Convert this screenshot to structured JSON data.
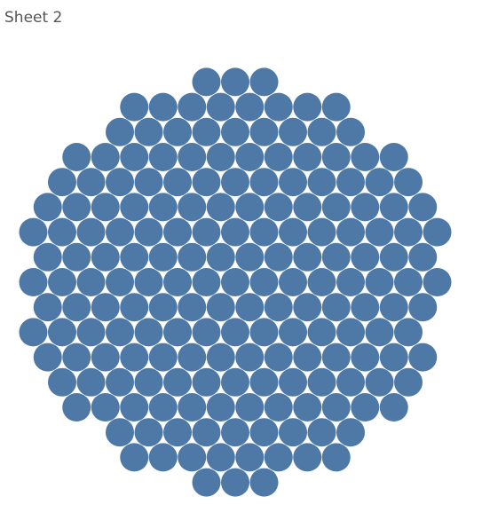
{
  "chart_data": {
    "type": "bubble",
    "title": "Sheet 2",
    "color": "#4e79a7",
    "values": [
      1,
      1,
      1,
      1,
      1,
      1,
      1,
      1,
      1,
      1,
      1,
      1,
      1,
      1,
      1,
      1,
      1,
      1,
      1,
      1,
      1,
      1,
      1,
      1,
      1,
      1,
      1,
      1,
      1,
      1,
      1,
      1,
      1,
      1,
      1,
      1,
      1,
      1,
      1,
      1,
      1,
      1,
      1,
      1,
      1,
      1,
      1,
      1,
      1,
      1,
      1,
      1,
      1,
      1,
      1,
      1,
      1,
      1,
      1,
      1,
      1,
      1,
      1,
      1,
      1,
      1,
      1,
      1,
      1,
      1,
      1,
      1,
      1,
      1,
      1,
      1,
      1,
      1,
      1,
      1,
      1,
      1,
      1,
      1,
      1,
      1,
      1,
      1,
      1,
      1,
      1,
      1,
      1,
      1,
      1,
      1,
      1,
      1,
      1,
      1,
      1,
      1,
      1,
      1,
      1,
      1,
      1,
      1,
      1,
      1,
      1,
      1,
      1,
      1,
      1,
      1,
      1,
      1,
      1,
      1,
      1,
      1,
      1,
      1,
      1,
      1,
      1,
      1,
      1,
      1,
      1,
      1,
      1,
      1,
      1,
      1,
      1,
      1,
      1,
      1,
      1,
      1,
      1,
      1,
      1,
      1,
      1,
      1,
      1,
      1,
      1,
      1,
      1,
      1,
      1,
      1,
      1,
      1,
      1,
      1,
      1,
      1,
      1,
      1,
      1,
      1,
      1,
      1,
      1,
      1,
      1,
      1,
      1,
      1,
      1,
      1,
      1,
      1,
      1,
      1,
      1,
      1,
      1,
      1,
      1,
      1,
      1,
      1,
      1,
      1
    ]
  }
}
